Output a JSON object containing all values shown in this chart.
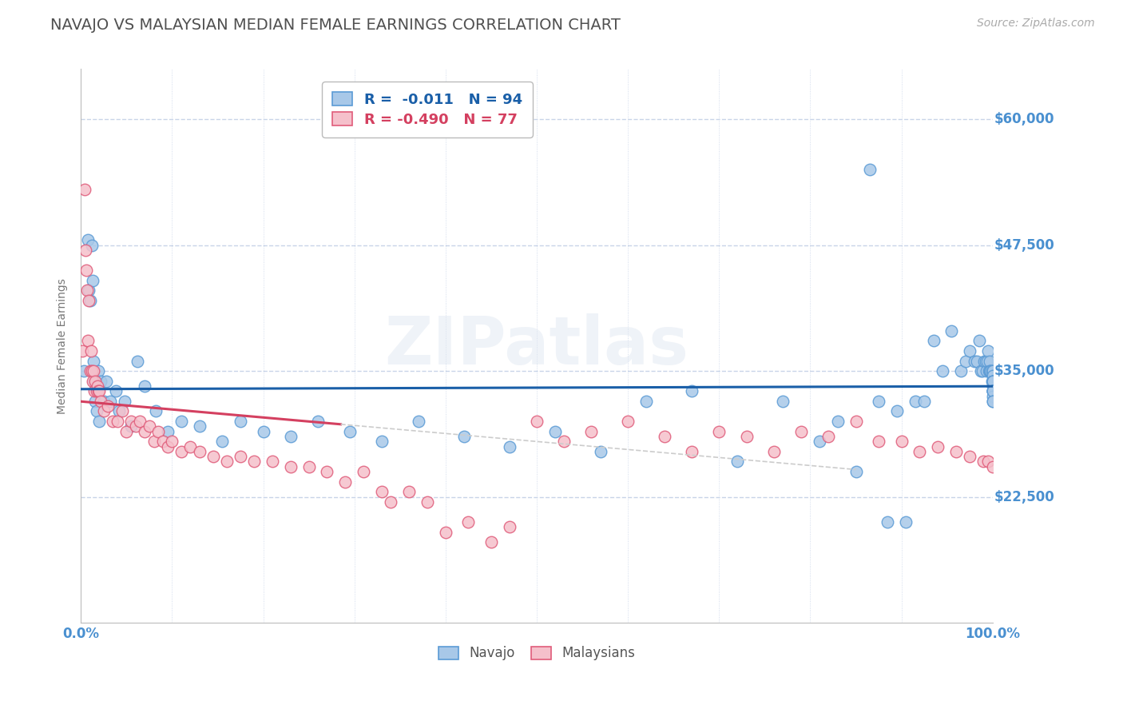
{
  "title": "NAVAJO VS MALAYSIAN MEDIAN FEMALE EARNINGS CORRELATION CHART",
  "source_text": "Source: ZipAtlas.com",
  "ylabel": "Median Female Earnings",
  "x_min": 0.0,
  "x_max": 1.0,
  "y_min": 10000,
  "y_max": 65000,
  "yticks": [
    22500,
    35000,
    47500,
    60000
  ],
  "ytick_labels": [
    "$22,500",
    "$35,000",
    "$47,500",
    "$60,000"
  ],
  "xtick_labels": [
    "0.0%",
    "100.0%"
  ],
  "navajo_color": "#a8c8e8",
  "navajo_edge_color": "#5b9bd5",
  "malaysian_color": "#f5c0cb",
  "malaysian_edge_color": "#e05c7a",
  "navajo_R": -0.011,
  "navajo_N": 94,
  "malaysian_R": -0.49,
  "malaysian_N": 77,
  "navajo_line_color": "#1a5fa8",
  "malaysian_line_color": "#d44060",
  "malaysian_line_dash_color": "#cccccc",
  "background_color": "#ffffff",
  "grid_color": "#c8d4e8",
  "title_color": "#505050",
  "axis_label_color": "#4a90d0",
  "watermark_text": "ZIPatlas",
  "navajo_x": [
    0.003,
    0.008,
    0.009,
    0.01,
    0.012,
    0.013,
    0.014,
    0.015,
    0.016,
    0.017,
    0.018,
    0.019,
    0.02,
    0.022,
    0.025,
    0.028,
    0.032,
    0.038,
    0.042,
    0.048,
    0.055,
    0.062,
    0.07,
    0.082,
    0.095,
    0.11,
    0.13,
    0.155,
    0.175,
    0.2,
    0.23,
    0.26,
    0.295,
    0.33,
    0.37,
    0.42,
    0.47,
    0.52,
    0.57,
    0.62,
    0.67,
    0.72,
    0.77,
    0.81,
    0.83,
    0.85,
    0.865,
    0.875,
    0.885,
    0.895,
    0.905,
    0.915,
    0.925,
    0.935,
    0.945,
    0.955,
    0.965,
    0.97,
    0.975,
    0.98,
    0.983,
    0.985,
    0.987,
    0.989,
    0.991,
    0.992,
    0.993,
    0.994,
    0.995,
    0.996,
    0.997,
    0.997,
    0.998,
    0.998,
    0.999,
    0.999,
    1.0,
    1.0,
    1.0,
    1.0,
    1.0,
    1.0,
    1.0,
    1.0,
    1.0,
    1.0,
    1.0,
    1.0,
    1.0,
    1.0,
    1.0,
    1.0,
    1.0,
    1.0
  ],
  "navajo_y": [
    35000,
    48000,
    43000,
    42000,
    47500,
    44000,
    36000,
    34000,
    32000,
    31000,
    33000,
    35000,
    30000,
    34000,
    32000,
    34000,
    32000,
    33000,
    31000,
    32000,
    29500,
    36000,
    33500,
    31000,
    29000,
    30000,
    29500,
    28000,
    30000,
    29000,
    28500,
    30000,
    29000,
    28000,
    30000,
    28500,
    27500,
    29000,
    27000,
    32000,
    33000,
    26000,
    32000,
    28000,
    30000,
    25000,
    55000,
    32000,
    20000,
    31000,
    20000,
    32000,
    32000,
    38000,
    35000,
    39000,
    35000,
    36000,
    37000,
    36000,
    36000,
    38000,
    35000,
    35000,
    36000,
    36000,
    35000,
    36000,
    37000,
    35000,
    36000,
    35000,
    35000,
    35000,
    35000,
    34000,
    35000,
    34000,
    34000,
    34000,
    34500,
    33500,
    34000,
    34000,
    33000,
    34000,
    33000,
    34000,
    33000,
    33000,
    32500,
    33000,
    32000,
    32000
  ],
  "malaysian_x": [
    0.002,
    0.004,
    0.005,
    0.006,
    0.007,
    0.008,
    0.009,
    0.01,
    0.011,
    0.012,
    0.013,
    0.014,
    0.015,
    0.016,
    0.017,
    0.018,
    0.019,
    0.02,
    0.022,
    0.025,
    0.03,
    0.035,
    0.04,
    0.045,
    0.05,
    0.055,
    0.06,
    0.065,
    0.07,
    0.075,
    0.08,
    0.085,
    0.09,
    0.095,
    0.1,
    0.11,
    0.12,
    0.13,
    0.145,
    0.16,
    0.175,
    0.19,
    0.21,
    0.23,
    0.25,
    0.27,
    0.29,
    0.31,
    0.33,
    0.34,
    0.36,
    0.38,
    0.4,
    0.425,
    0.45,
    0.47,
    0.5,
    0.53,
    0.56,
    0.6,
    0.64,
    0.67,
    0.7,
    0.73,
    0.76,
    0.79,
    0.82,
    0.85,
    0.875,
    0.9,
    0.92,
    0.94,
    0.96,
    0.975,
    0.99,
    0.995,
    1.0
  ],
  "malaysian_y": [
    37000,
    53000,
    47000,
    45000,
    43000,
    38000,
    42000,
    35000,
    37000,
    35000,
    34000,
    35000,
    33000,
    34000,
    33000,
    33500,
    33000,
    33000,
    32000,
    31000,
    31500,
    30000,
    30000,
    31000,
    29000,
    30000,
    29500,
    30000,
    29000,
    29500,
    28000,
    29000,
    28000,
    27500,
    28000,
    27000,
    27500,
    27000,
    26500,
    26000,
    26500,
    26000,
    26000,
    25500,
    25500,
    25000,
    24000,
    25000,
    23000,
    22000,
    23000,
    22000,
    19000,
    20000,
    18000,
    19500,
    30000,
    28000,
    29000,
    30000,
    28500,
    27000,
    29000,
    28500,
    27000,
    29000,
    28500,
    30000,
    28000,
    28000,
    27000,
    27500,
    27000,
    26500,
    26000,
    26000,
    25500
  ]
}
